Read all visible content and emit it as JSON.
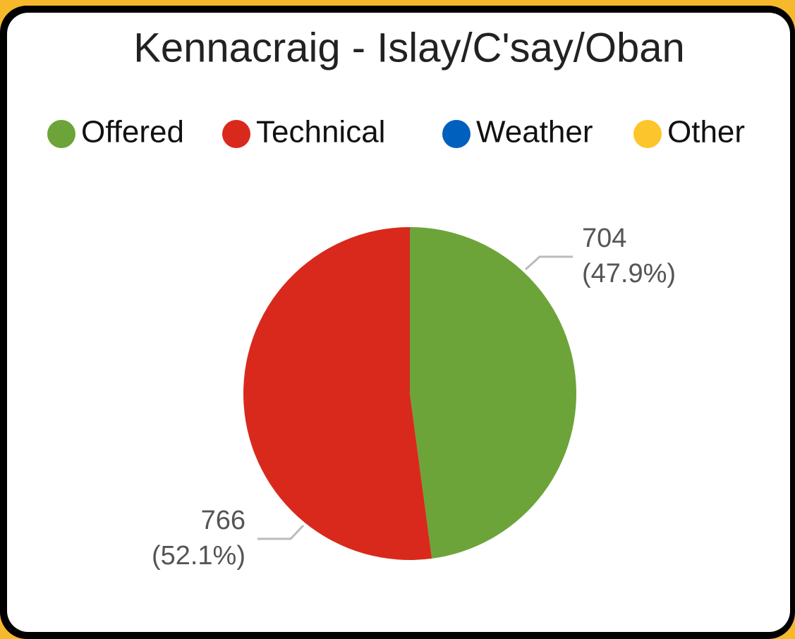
{
  "chart_data": {
    "type": "pie",
    "title": "Kennacraig - Islay/C'say/Oban",
    "categories": [
      "Offered",
      "Technical",
      "Weather",
      "Other"
    ],
    "values": [
      704,
      766,
      0,
      0
    ],
    "percent_labels": [
      "(47.9%)",
      "(52.1%)",
      null,
      null
    ],
    "colors": [
      "#6ca43a",
      "#d9291c",
      "#0060bd",
      "#fdc52c"
    ],
    "legend": "top"
  }
}
